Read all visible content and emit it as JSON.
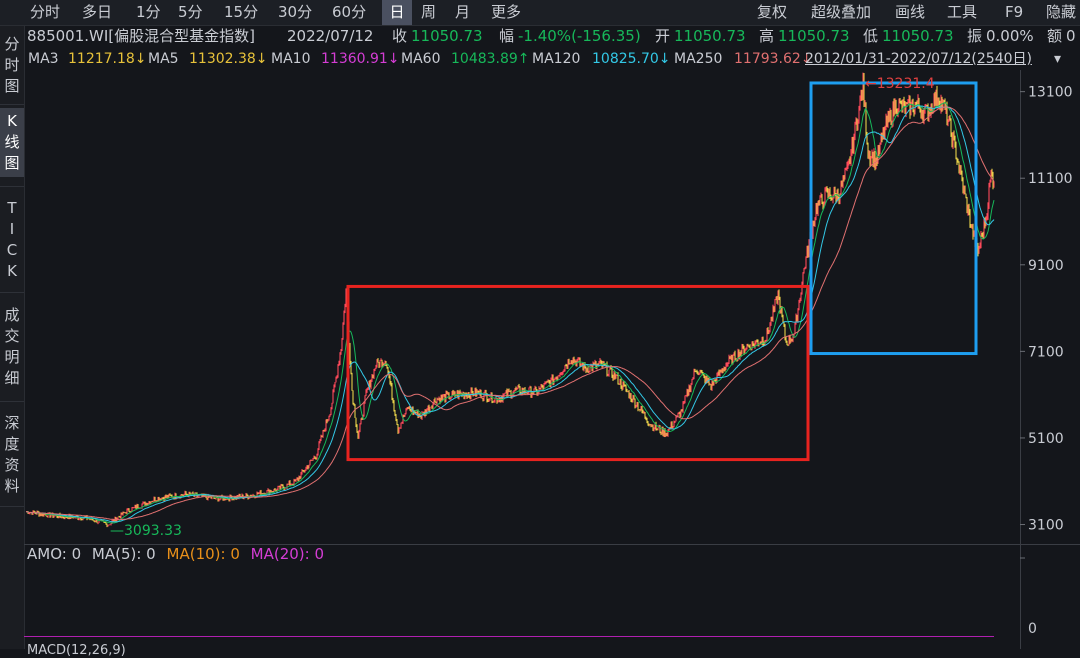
{
  "toolbar": {
    "periods": [
      "分时",
      "多日",
      "1分",
      "5分",
      "15分",
      "30分",
      "60分",
      "日",
      "周",
      "月",
      "更多"
    ],
    "active_period": "日",
    "right_tools": [
      "复权",
      "超级叠加",
      "画线",
      "工具",
      "F9",
      "隐藏"
    ]
  },
  "sidebar": {
    "items": [
      {
        "label": "分时图",
        "chars": [
          "分",
          "时",
          "图"
        ],
        "active": false
      },
      {
        "label": "K线图",
        "chars": [
          "K",
          "线",
          "图"
        ],
        "active": true
      },
      {
        "label": "TICK",
        "chars": [
          "T",
          "I",
          "C",
          "K"
        ],
        "active": false
      },
      {
        "label": "成交明细",
        "chars": [
          "成",
          "交",
          "明",
          "细"
        ],
        "active": false
      },
      {
        "label": "深度资料",
        "chars": [
          "深",
          "度",
          "资",
          "料"
        ],
        "active": false
      }
    ]
  },
  "quote": {
    "name": "885001.WI[偏股混合型基金指数]",
    "date": "2022/07/12",
    "close_label": "收",
    "close": "11050.73",
    "change_label": "幅",
    "change": "-1.40%(-156.35)",
    "open_label": "开",
    "open": "11050.73",
    "high_label": "高",
    "high": "11050.73",
    "low_label": "低",
    "low": "11050.73",
    "amplitude_label": "振",
    "amplitude": "0.00%",
    "amount_label": "额",
    "amount": "0"
  },
  "ma_bar": {
    "ma3": {
      "label": "MA3",
      "value": "11217.18↓",
      "color": "#e7c23a"
    },
    "ma5": {
      "label": "MA5",
      "value": "11302.38↓",
      "color": "#e7c23a"
    },
    "ma10": {
      "label": "MA10",
      "value": "11360.91↓",
      "color": "#d43dd4"
    },
    "ma60": {
      "label": "MA60",
      "value": "10483.89↑",
      "color": "#17b85a"
    },
    "ma120": {
      "label": "MA120",
      "value": "10825.70↓",
      "color": "#33c8e6"
    },
    "ma250": {
      "label": "MA250",
      "value": "11793.62↓",
      "color": "#e07070"
    },
    "range": "2012/01/31-2022/07/12(2540日)"
  },
  "chart_data": {
    "type": "line",
    "title": "",
    "xlabel": "",
    "ylabel": "",
    "ylim": [
      2650,
      13600
    ],
    "y_ticks": [
      3100,
      5100,
      7100,
      9100,
      11100,
      13100
    ],
    "x": [
      "2012/01/31",
      "2022/07/12"
    ],
    "series": [
      {
        "name": "",
        "points": [
          [
            0,
            3400
          ],
          [
            30,
            3300
          ],
          [
            60,
            3250
          ],
          [
            82,
            3100
          ],
          [
            100,
            3400
          ],
          [
            130,
            3700
          ],
          [
            160,
            3800
          ],
          [
            190,
            3700
          ],
          [
            220,
            3750
          ],
          [
            250,
            3900
          ],
          [
            270,
            4100
          ],
          [
            290,
            4700
          ],
          [
            305,
            5800
          ],
          [
            315,
            7200
          ],
          [
            320,
            8500
          ],
          [
            326,
            6200
          ],
          [
            332,
            5100
          ],
          [
            340,
            6100
          ],
          [
            350,
            6800
          ],
          [
            360,
            6900
          ],
          [
            372,
            5300
          ],
          [
            382,
            5800
          ],
          [
            395,
            5600
          ],
          [
            410,
            6000
          ],
          [
            430,
            6100
          ],
          [
            450,
            6150
          ],
          [
            470,
            6000
          ],
          [
            490,
            6200
          ],
          [
            510,
            6150
          ],
          [
            530,
            6500
          ],
          [
            545,
            6950
          ],
          [
            560,
            6700
          ],
          [
            575,
            6800
          ],
          [
            590,
            6500
          ],
          [
            610,
            5900
          ],
          [
            625,
            5400
          ],
          [
            640,
            5200
          ],
          [
            655,
            5700
          ],
          [
            670,
            6700
          ],
          [
            685,
            6300
          ],
          [
            700,
            6800
          ],
          [
            720,
            7200
          ],
          [
            740,
            7400
          ],
          [
            752,
            8400
          ],
          [
            760,
            7300
          ],
          [
            768,
            7500
          ],
          [
            778,
            9000
          ],
          [
            790,
            10400
          ],
          [
            800,
            10700
          ],
          [
            812,
            10700
          ],
          [
            822,
            11300
          ],
          [
            832,
            12600
          ],
          [
            837,
            13231
          ],
          [
            842,
            11700
          ],
          [
            850,
            11500
          ],
          [
            860,
            12300
          ],
          [
            870,
            12800
          ],
          [
            880,
            12700
          ],
          [
            890,
            12800
          ],
          [
            900,
            12600
          ],
          [
            912,
            13000
          ],
          [
            920,
            12600
          ],
          [
            930,
            11700
          ],
          [
            945,
            10000
          ],
          [
            952,
            9400
          ],
          [
            960,
            10200
          ],
          [
            965,
            11200
          ],
          [
            968,
            11050
          ]
        ]
      }
    ],
    "ma_overlays": [
      "MA60",
      "MA120",
      "MA250"
    ],
    "annotations": [
      {
        "text": "3093.33",
        "value": 3093.33
      },
      {
        "text": "←13231.4",
        "value": 13231.4
      }
    ],
    "highlight_boxes": [
      {
        "color": "#e8231f",
        "y_range": [
          4600,
          8600
        ]
      },
      {
        "color": "#1e9ef0",
        "y_range": [
          7050,
          13300
        ]
      }
    ],
    "grid": false,
    "legend": "none"
  },
  "indicator": {
    "amo_label": "AMO: 0",
    "ma5": "MA(5): 0",
    "ma10": "MA(10): 0",
    "ma20": "MA(20): 0",
    "y_zero": "0",
    "macd_label": "MACD(12,26,9)"
  }
}
